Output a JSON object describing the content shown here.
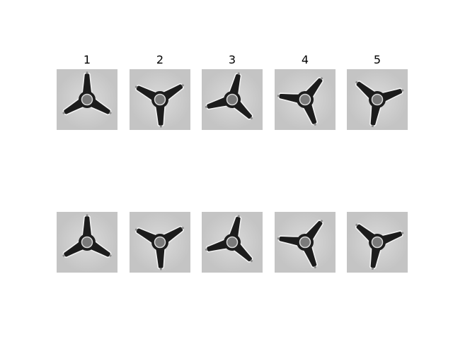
{
  "figure": {
    "column_titles": [
      "1",
      "2",
      "3",
      "4",
      "5"
    ],
    "rows": [
      {
        "row": "top",
        "tiles": [
          {
            "label": "1",
            "rotation_deg": 0
          },
          {
            "label": "2",
            "rotation_deg": 58
          },
          {
            "label": "3",
            "rotation_deg": 14
          },
          {
            "label": "4",
            "rotation_deg": 38
          },
          {
            "label": "5",
            "rotation_deg": 70
          }
        ]
      },
      {
        "row": "bottom",
        "tiles": [
          {
            "label": "1",
            "rotation_deg": 0
          },
          {
            "label": "2",
            "rotation_deg": 58
          },
          {
            "label": "3",
            "rotation_deg": 14
          },
          {
            "label": "4",
            "rotation_deg": 38
          },
          {
            "label": "5",
            "rotation_deg": 70
          }
        ]
      }
    ],
    "colors": {
      "background": "#ffffff",
      "tile_bg": "#cfcfcf",
      "object_fill": "#1c1c1c",
      "object_edge": "#f2f2f2",
      "hub_fill": "#7a7a7a"
    },
    "icon": "three-armed-spinner-object"
  }
}
